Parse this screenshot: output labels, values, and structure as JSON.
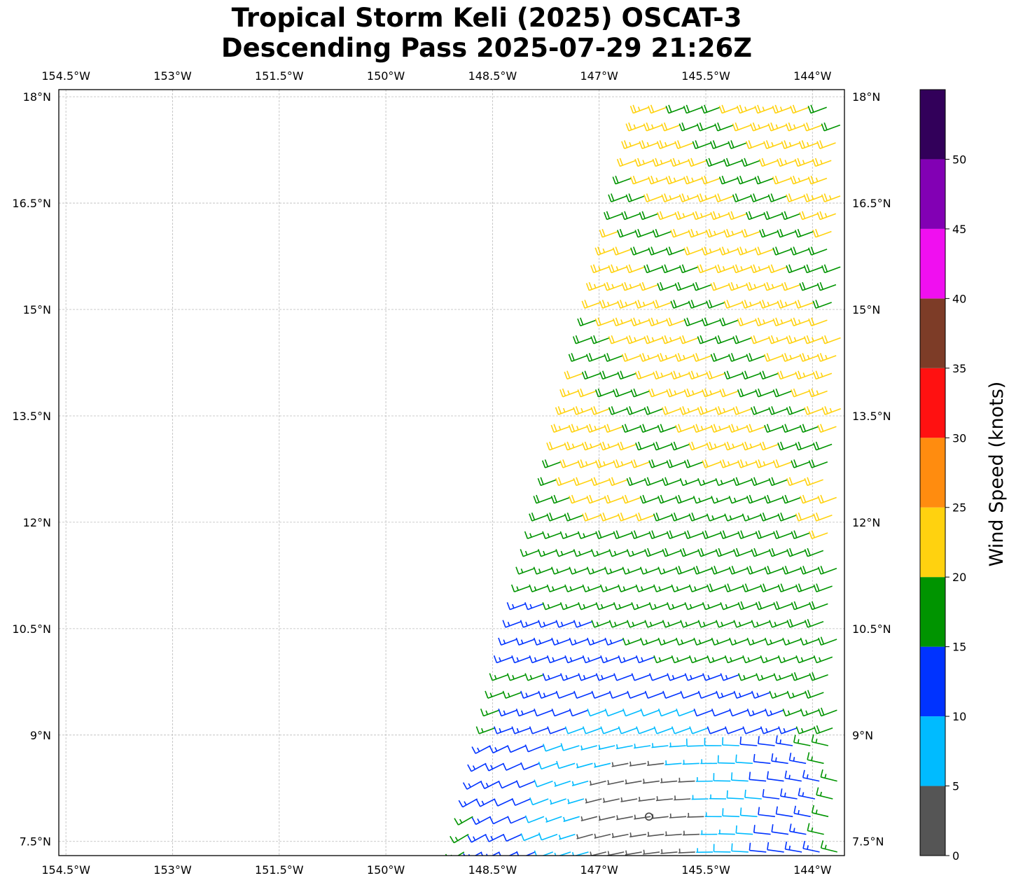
{
  "figure": {
    "title_line1": "Tropical Storm Keli (2025) OSCAT-3",
    "title_line2": "Descending Pass 2025-07-29 21:26Z"
  },
  "map": {
    "lon_range": [
      -154.6,
      -143.55
    ],
    "lat_range": [
      7.3,
      18.1
    ],
    "gridlines": true,
    "lon_ticks": [
      {
        "value": -154.5,
        "label": "154.5°W"
      },
      {
        "value": -153.0,
        "label": "153°W"
      },
      {
        "value": -151.5,
        "label": "151.5°W"
      },
      {
        "value": -150.0,
        "label": "150°W"
      },
      {
        "value": -148.5,
        "label": "148.5°W"
      },
      {
        "value": -147.0,
        "label": "147°W"
      },
      {
        "value": -145.5,
        "label": "145.5°W"
      },
      {
        "value": -144.0,
        "label": "144°W"
      }
    ],
    "lat_ticks": [
      {
        "value": 18.0,
        "label": "18°N"
      },
      {
        "value": 16.5,
        "label": "16.5°N"
      },
      {
        "value": 15.0,
        "label": "15°N"
      },
      {
        "value": 13.5,
        "label": "13.5°N"
      },
      {
        "value": 12.0,
        "label": "12°N"
      },
      {
        "value": 10.5,
        "label": "10.5°N"
      },
      {
        "value": 9.0,
        "label": "9°N"
      },
      {
        "value": 7.5,
        "label": "7.5°N"
      }
    ],
    "storm_center": {
      "lon": -146.3,
      "lat": 7.85
    },
    "swath_west_edge": [
      [
        -146.25,
        18.05
      ],
      [
        -148.9,
        7.35
      ]
    ]
  },
  "colorbar": {
    "title": "Wind Speed (knots)",
    "bins": [
      {
        "from": 0,
        "to": 5,
        "color": "#555555"
      },
      {
        "from": 5,
        "to": 10,
        "color": "#00bbff"
      },
      {
        "from": 10,
        "to": 15,
        "color": "#0033ff"
      },
      {
        "from": 15,
        "to": 20,
        "color": "#009400"
      },
      {
        "from": 20,
        "to": 25,
        "color": "#ffd20f"
      },
      {
        "from": 25,
        "to": 30,
        "color": "#ff8c0f"
      },
      {
        "from": 30,
        "to": 35,
        "color": "#ff1111"
      },
      {
        "from": 35,
        "to": 40,
        "color": "#7d3c27"
      },
      {
        "from": 40,
        "to": 45,
        "color": "#f00ff0"
      },
      {
        "from": 45,
        "to": 50,
        "color": "#8200b4"
      },
      {
        "from": 50,
        "to": 55,
        "color": "#32005a"
      }
    ],
    "tick_labels": [
      "0",
      "5",
      "10",
      "15",
      "20",
      "25",
      "30",
      "35",
      "40",
      "45",
      "50"
    ]
  }
}
